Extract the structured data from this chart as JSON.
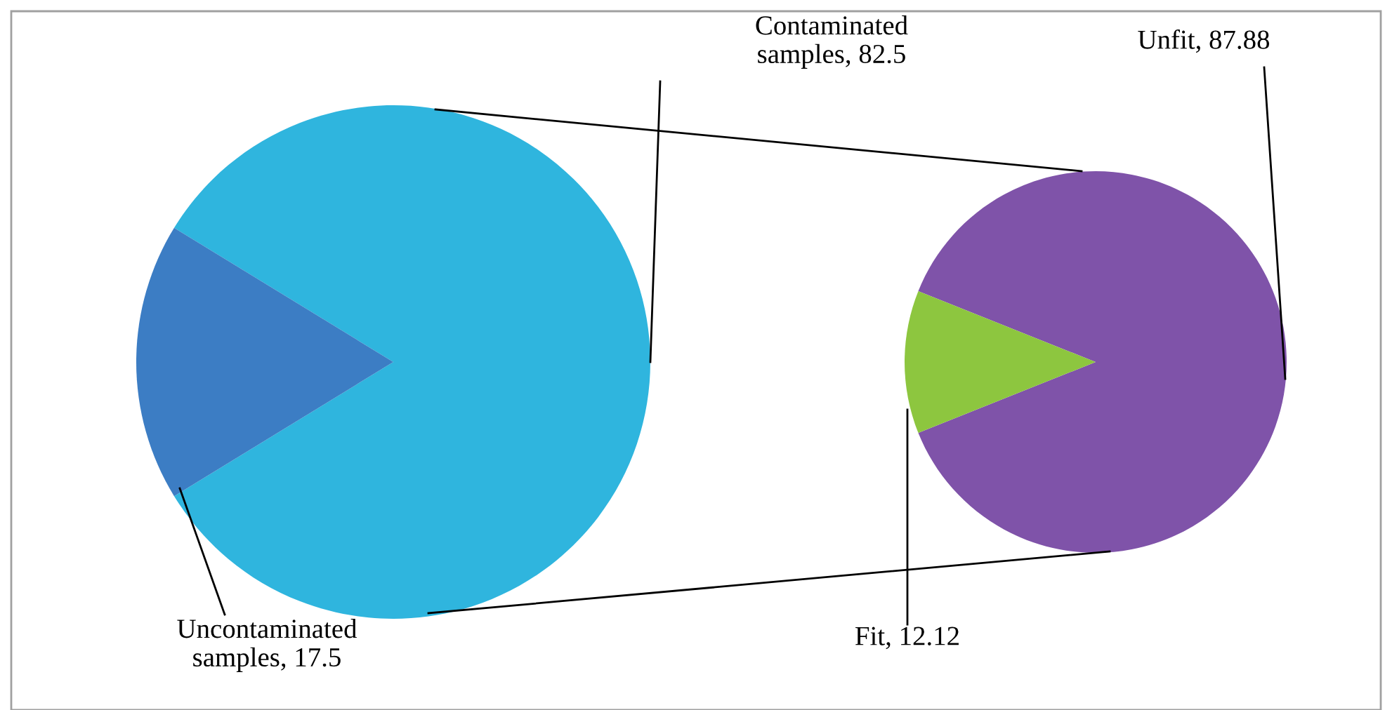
{
  "chart_data": [
    {
      "type": "pie",
      "categories": [
        "Contaminated samples, 82.5",
        "Uncontaminated samples, 17.5"
      ],
      "values": [
        82.5,
        17.5
      ],
      "colors": [
        "#2fb5de",
        "#3c7dc4"
      ]
    },
    {
      "type": "pie",
      "categories": [
        "Unfit, 87.88",
        "Fit, 12.12"
      ],
      "values": [
        87.88,
        12.12
      ],
      "colors": [
        "#7f53a9",
        "#8dc63f"
      ]
    }
  ]
}
